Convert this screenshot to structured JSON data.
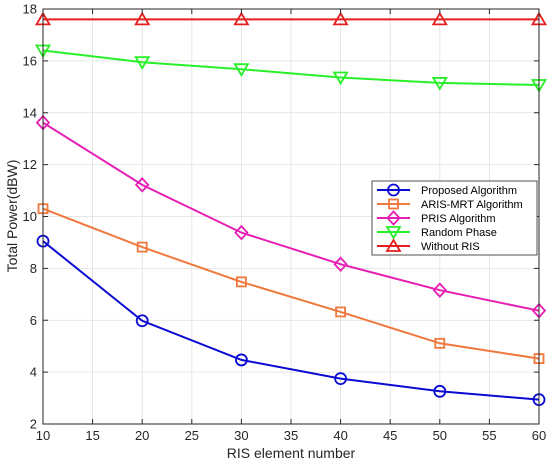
{
  "chart_data": {
    "type": "line",
    "xlabel": "RIS element number",
    "ylabel": "Total Power(dBW)",
    "xlim": [
      10,
      60
    ],
    "ylim": [
      2,
      18
    ],
    "x_ticks": [
      10,
      15,
      20,
      25,
      30,
      35,
      40,
      45,
      50,
      55,
      60
    ],
    "y_ticks": [
      2,
      4,
      6,
      8,
      10,
      12,
      14,
      16,
      18
    ],
    "grid": true,
    "legend_position": "center-right",
    "x": [
      10,
      20,
      30,
      40,
      50,
      60
    ],
    "series": [
      {
        "name": "Proposed Algorithm",
        "color": "#0a0ad2",
        "marker": "circle",
        "values": [
          9.05,
          5.98,
          4.47,
          3.75,
          3.26,
          2.94
        ]
      },
      {
        "name": "ARIS-MRT Algorithm",
        "color": "#f0783c",
        "marker": "square",
        "values": [
          10.3,
          8.82,
          7.48,
          6.32,
          5.11,
          4.52
        ]
      },
      {
        "name": "PRIS Algorithm",
        "color": "#e61eb4",
        "marker": "diamond",
        "values": [
          13.62,
          11.22,
          9.38,
          8.16,
          7.16,
          6.37
        ]
      },
      {
        "name": "Random Phase",
        "color": "#28f028",
        "marker": "triangle-down",
        "values": [
          16.4,
          15.95,
          15.68,
          15.36,
          15.15,
          15.07
        ]
      },
      {
        "name": "Without RIS",
        "color": "#e61e1e",
        "marker": "triangle-up",
        "values": [
          17.6,
          17.6,
          17.6,
          17.6,
          17.6,
          17.6
        ]
      }
    ]
  }
}
